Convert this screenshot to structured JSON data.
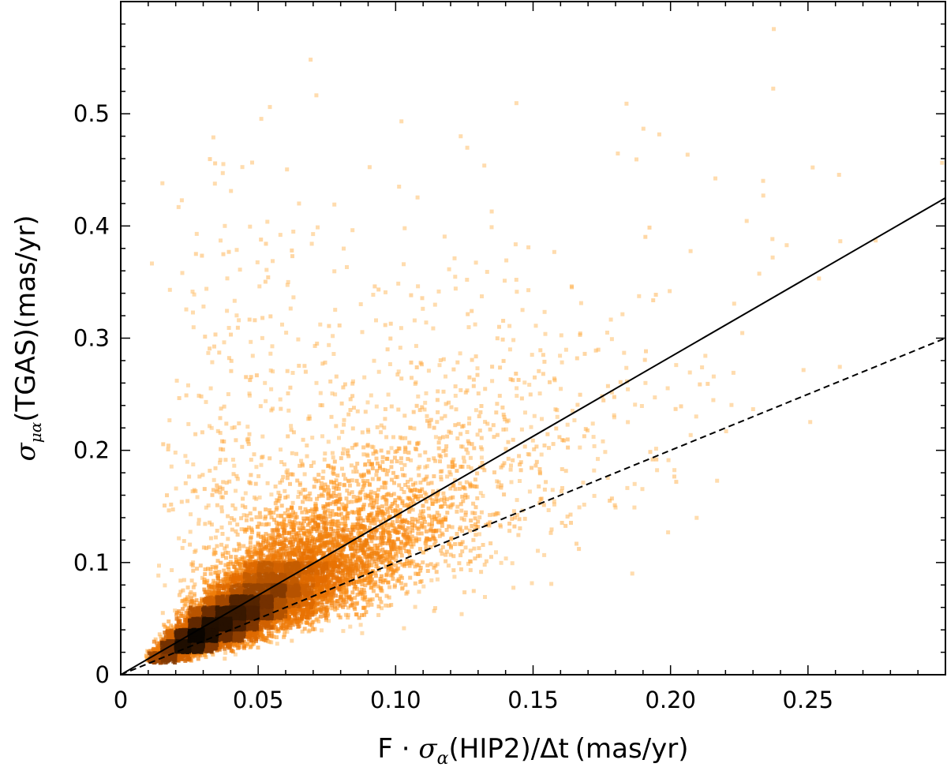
{
  "chart_data": {
    "type": "scatter",
    "style": "density-scatter",
    "colormap": [
      "#000000",
      "#ff7f00",
      "#ffb43c",
      "#ffd9a0"
    ],
    "title": "",
    "xlabel": {
      "prefix": "F · ",
      "symbol": "σ",
      "subscript": "α",
      "middle": "(HIP2)/Δt",
      "unit": "(mas/yr)"
    },
    "ylabel": {
      "symbol": "σ",
      "subscript": "μα",
      "middle": "(TGAS)",
      "unit": "(mas/yr)"
    },
    "xlim": [
      0,
      0.3
    ],
    "ylim": [
      0,
      0.6
    ],
    "x_ticks": [
      "0",
      "0.05",
      "0.10",
      "0.15",
      "0.20",
      "0.25"
    ],
    "x_tick_values": [
      0,
      0.05,
      0.1,
      0.15,
      0.2,
      0.25
    ],
    "y_ticks": [
      "0",
      "0.1",
      "0.2",
      "0.3",
      "0.4",
      "0.5"
    ],
    "y_tick_values": [
      0,
      0.1,
      0.2,
      0.3,
      0.4,
      0.5
    ],
    "grid": false,
    "lines": [
      {
        "style": "solid",
        "color": "#000000",
        "x": [
          0,
          0.3
        ],
        "y": [
          0,
          0.425
        ]
      },
      {
        "style": "dashed",
        "color": "#000000",
        "x": [
          0,
          0.3
        ],
        "y": [
          0,
          0.3
        ]
      }
    ],
    "density_core": {
      "peak": [
        0.032,
        0.042
      ],
      "ridge_slope": 1.3,
      "x_range": [
        0.008,
        0.3
      ]
    }
  }
}
